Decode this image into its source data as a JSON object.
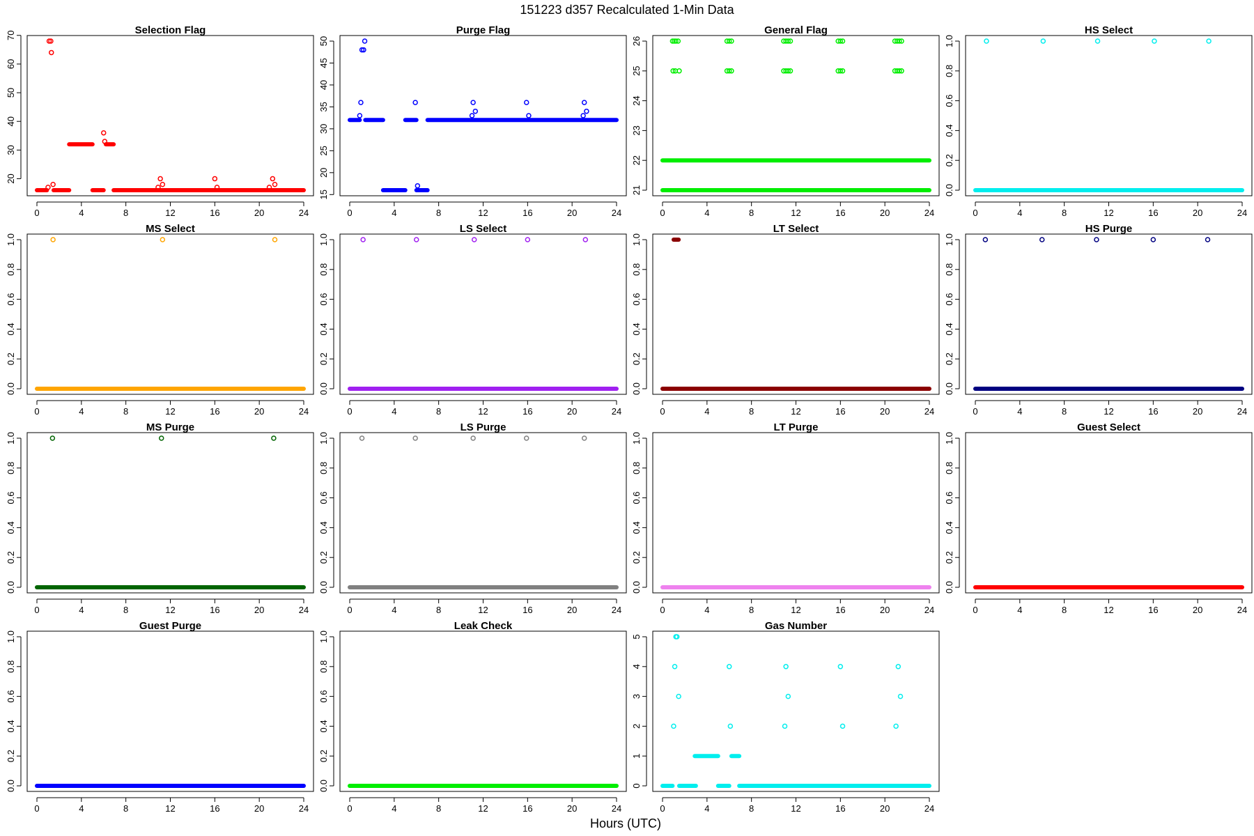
{
  "page": {
    "title": "151223   d357   Recalculated 1-Min Data",
    "x_axis_label": "Hours (UTC)"
  },
  "chart_data": [
    {
      "type": "scatter",
      "title": "Selection Flag",
      "color": "#ff0000",
      "xlim": [
        0,
        24
      ],
      "ylim": [
        16,
        68
      ],
      "xticks": [
        0,
        4,
        8,
        12,
        16,
        20,
        24
      ],
      "yticks": [
        20,
        30,
        40,
        50,
        60,
        70
      ],
      "segments": [
        {
          "x0": 0,
          "x1": 0.9,
          "y": 16
        },
        {
          "x0": 1.5,
          "x1": 2.9,
          "y": 16
        },
        {
          "x0": 2.9,
          "x1": 5.0,
          "y": 32
        },
        {
          "x0": 5.0,
          "x1": 6.0,
          "y": 16
        },
        {
          "x0": 6.2,
          "x1": 6.9,
          "y": 32
        },
        {
          "x0": 6.9,
          "x1": 24,
          "y": 16
        }
      ],
      "points": [
        {
          "x": 1.0,
          "y": 17
        },
        {
          "x": 1.1,
          "y": 68
        },
        {
          "x": 1.25,
          "y": 68
        },
        {
          "x": 1.3,
          "y": 64
        },
        {
          "x": 1.45,
          "y": 18
        },
        {
          "x": 6.0,
          "y": 36
        },
        {
          "x": 6.1,
          "y": 33
        },
        {
          "x": 10.9,
          "y": 17
        },
        {
          "x": 11.1,
          "y": 20
        },
        {
          "x": 11.3,
          "y": 18
        },
        {
          "x": 16.0,
          "y": 20
        },
        {
          "x": 16.2,
          "y": 17
        },
        {
          "x": 20.9,
          "y": 17
        },
        {
          "x": 21.2,
          "y": 20
        },
        {
          "x": 21.4,
          "y": 18
        }
      ]
    },
    {
      "type": "scatter",
      "title": "Purge Flag",
      "color": "#0000ff",
      "xlim": [
        0,
        24
      ],
      "ylim": [
        16,
        50
      ],
      "xticks": [
        0,
        4,
        8,
        12,
        16,
        20,
        24
      ],
      "yticks": [
        15,
        20,
        25,
        30,
        35,
        40,
        45,
        50
      ],
      "segments": [
        {
          "x0": 0,
          "x1": 0.9,
          "y": 32
        },
        {
          "x0": 1.4,
          "x1": 3.0,
          "y": 32
        },
        {
          "x0": 3.0,
          "x1": 5.0,
          "y": 16
        },
        {
          "x0": 5.0,
          "x1": 6.0,
          "y": 32
        },
        {
          "x0": 6.0,
          "x1": 7.0,
          "y": 16
        },
        {
          "x0": 7.0,
          "x1": 24,
          "y": 32
        }
      ],
      "points": [
        {
          "x": 0.9,
          "y": 33
        },
        {
          "x": 1.0,
          "y": 36
        },
        {
          "x": 1.1,
          "y": 48
        },
        {
          "x": 1.25,
          "y": 48
        },
        {
          "x": 1.35,
          "y": 50
        },
        {
          "x": 5.9,
          "y": 36
        },
        {
          "x": 6.1,
          "y": 17
        },
        {
          "x": 11.0,
          "y": 33
        },
        {
          "x": 11.1,
          "y": 36
        },
        {
          "x": 11.3,
          "y": 34
        },
        {
          "x": 15.9,
          "y": 36
        },
        {
          "x": 16.1,
          "y": 33
        },
        {
          "x": 21.0,
          "y": 33
        },
        {
          "x": 21.1,
          "y": 36
        },
        {
          "x": 21.3,
          "y": 34
        }
      ]
    },
    {
      "type": "scatter",
      "title": "General Flag",
      "color": "#00ee00",
      "xlim": [
        0,
        24
      ],
      "ylim": [
        21,
        26
      ],
      "xticks": [
        0,
        4,
        8,
        12,
        16,
        20,
        24
      ],
      "yticks": [
        21,
        22,
        23,
        24,
        25,
        26
      ],
      "segments": [
        {
          "x0": 0,
          "x1": 24,
          "y": 21
        },
        {
          "x0": 0,
          "x1": 24,
          "y": 22
        }
      ],
      "points": [
        {
          "x": 0.9,
          "y": 26
        },
        {
          "x": 1.05,
          "y": 26
        },
        {
          "x": 1.2,
          "y": 26
        },
        {
          "x": 1.4,
          "y": 26
        },
        {
          "x": 0.95,
          "y": 25
        },
        {
          "x": 1.15,
          "y": 25
        },
        {
          "x": 1.5,
          "y": 25
        },
        {
          "x": 5.8,
          "y": 26
        },
        {
          "x": 6.0,
          "y": 26
        },
        {
          "x": 6.2,
          "y": 26
        },
        {
          "x": 5.8,
          "y": 25
        },
        {
          "x": 6.0,
          "y": 25
        },
        {
          "x": 6.2,
          "y": 25
        },
        {
          "x": 10.9,
          "y": 26
        },
        {
          "x": 11.1,
          "y": 26
        },
        {
          "x": 11.3,
          "y": 26
        },
        {
          "x": 11.5,
          "y": 26
        },
        {
          "x": 10.9,
          "y": 25
        },
        {
          "x": 11.1,
          "y": 25
        },
        {
          "x": 11.3,
          "y": 25
        },
        {
          "x": 11.5,
          "y": 25
        },
        {
          "x": 15.8,
          "y": 26
        },
        {
          "x": 16.0,
          "y": 26
        },
        {
          "x": 16.2,
          "y": 26
        },
        {
          "x": 15.8,
          "y": 25
        },
        {
          "x": 16.0,
          "y": 25
        },
        {
          "x": 16.2,
          "y": 25
        },
        {
          "x": 20.9,
          "y": 26
        },
        {
          "x": 21.1,
          "y": 26
        },
        {
          "x": 21.3,
          "y": 26
        },
        {
          "x": 21.5,
          "y": 26
        },
        {
          "x": 20.9,
          "y": 25
        },
        {
          "x": 21.1,
          "y": 25
        },
        {
          "x": 21.3,
          "y": 25
        },
        {
          "x": 21.5,
          "y": 25
        }
      ]
    },
    {
      "type": "scatter",
      "title": "HS Select",
      "color": "#00eeee",
      "xlim": [
        0,
        24
      ],
      "ylim": [
        0,
        1
      ],
      "xticks": [
        0,
        4,
        8,
        12,
        16,
        20,
        24
      ],
      "yticks": [
        0.0,
        0.2,
        0.4,
        0.6,
        0.8,
        1.0
      ],
      "segments": [
        {
          "x0": 0,
          "x1": 24,
          "y": 0
        }
      ],
      "points": [
        {
          "x": 1.0,
          "y": 1
        },
        {
          "x": 6.1,
          "y": 1
        },
        {
          "x": 11.0,
          "y": 1
        },
        {
          "x": 16.1,
          "y": 1
        },
        {
          "x": 21.0,
          "y": 1
        }
      ]
    },
    {
      "type": "scatter",
      "title": "MS Select",
      "color": "#ffa500",
      "xlim": [
        0,
        24
      ],
      "ylim": [
        0,
        1
      ],
      "xticks": [
        0,
        4,
        8,
        12,
        16,
        20,
        24
      ],
      "yticks": [
        0.0,
        0.2,
        0.4,
        0.6,
        0.8,
        1.0
      ],
      "segments": [
        {
          "x0": 0,
          "x1": 24,
          "y": 0
        }
      ],
      "points": [
        {
          "x": 1.45,
          "y": 1
        },
        {
          "x": 11.3,
          "y": 1
        },
        {
          "x": 21.4,
          "y": 1
        }
      ]
    },
    {
      "type": "scatter",
      "title": "LS Select",
      "color": "#a020f0",
      "xlim": [
        0,
        24
      ],
      "ylim": [
        0,
        1
      ],
      "xticks": [
        0,
        4,
        8,
        12,
        16,
        20,
        24
      ],
      "yticks": [
        0.0,
        0.2,
        0.4,
        0.6,
        0.8,
        1.0
      ],
      "segments": [
        {
          "x0": 0,
          "x1": 24,
          "y": 0
        }
      ],
      "points": [
        {
          "x": 1.2,
          "y": 1
        },
        {
          "x": 6.0,
          "y": 1
        },
        {
          "x": 11.2,
          "y": 1
        },
        {
          "x": 16.0,
          "y": 1
        },
        {
          "x": 21.2,
          "y": 1
        }
      ]
    },
    {
      "type": "scatter",
      "title": "LT Select",
      "color": "#8b0000",
      "xlim": [
        0,
        24
      ],
      "ylim": [
        0,
        1
      ],
      "xticks": [
        0,
        4,
        8,
        12,
        16,
        20,
        24
      ],
      "yticks": [
        0.0,
        0.2,
        0.4,
        0.6,
        0.8,
        1.0
      ],
      "segments": [
        {
          "x0": 0,
          "x1": 24,
          "y": 0
        },
        {
          "x0": 1.0,
          "x1": 1.45,
          "y": 1
        }
      ],
      "points": []
    },
    {
      "type": "scatter",
      "title": "HS Purge",
      "color": "#000080",
      "xlim": [
        0,
        24
      ],
      "ylim": [
        0,
        1
      ],
      "xticks": [
        0,
        4,
        8,
        12,
        16,
        20,
        24
      ],
      "yticks": [
        0.0,
        0.2,
        0.4,
        0.6,
        0.8,
        1.0
      ],
      "segments": [
        {
          "x0": 0,
          "x1": 24,
          "y": 0
        }
      ],
      "points": [
        {
          "x": 0.9,
          "y": 1
        },
        {
          "x": 6.0,
          "y": 1
        },
        {
          "x": 10.9,
          "y": 1
        },
        {
          "x": 16.0,
          "y": 1
        },
        {
          "x": 20.9,
          "y": 1
        }
      ]
    },
    {
      "type": "scatter",
      "title": "MS Purge",
      "color": "#006400",
      "xlim": [
        0,
        24
      ],
      "ylim": [
        0,
        1
      ],
      "xticks": [
        0,
        4,
        8,
        12,
        16,
        20,
        24
      ],
      "yticks": [
        0.0,
        0.2,
        0.4,
        0.6,
        0.8,
        1.0
      ],
      "segments": [
        {
          "x0": 0,
          "x1": 24,
          "y": 0
        }
      ],
      "points": [
        {
          "x": 1.4,
          "y": 1
        },
        {
          "x": 11.2,
          "y": 1
        },
        {
          "x": 21.3,
          "y": 1
        }
      ]
    },
    {
      "type": "scatter",
      "title": "LS Purge",
      "color": "#808080",
      "xlim": [
        0,
        24
      ],
      "ylim": [
        0,
        1
      ],
      "xticks": [
        0,
        4,
        8,
        12,
        16,
        20,
        24
      ],
      "yticks": [
        0.0,
        0.2,
        0.4,
        0.6,
        0.8,
        1.0
      ],
      "segments": [
        {
          "x0": 0,
          "x1": 24,
          "y": 0
        }
      ],
      "points": [
        {
          "x": 1.1,
          "y": 1
        },
        {
          "x": 5.9,
          "y": 1
        },
        {
          "x": 11.1,
          "y": 1
        },
        {
          "x": 15.9,
          "y": 1
        },
        {
          "x": 21.1,
          "y": 1
        }
      ]
    },
    {
      "type": "scatter",
      "title": "LT Purge",
      "color": "#ee82ee",
      "xlim": [
        0,
        24
      ],
      "ylim": [
        0,
        1
      ],
      "xticks": [
        0,
        4,
        8,
        12,
        16,
        20,
        24
      ],
      "yticks": [
        0.0,
        0.2,
        0.4,
        0.6,
        0.8,
        1.0
      ],
      "segments": [
        {
          "x0": 0,
          "x1": 24,
          "y": 0
        }
      ],
      "points": []
    },
    {
      "type": "scatter",
      "title": "Guest Select",
      "color": "#ff0000",
      "xlim": [
        0,
        24
      ],
      "ylim": [
        0,
        1
      ],
      "xticks": [
        0,
        4,
        8,
        12,
        16,
        20,
        24
      ],
      "yticks": [
        0.0,
        0.2,
        0.4,
        0.6,
        0.8,
        1.0
      ],
      "segments": [
        {
          "x0": 0,
          "x1": 24,
          "y": 0
        }
      ],
      "points": []
    },
    {
      "type": "scatter",
      "title": "Guest Purge",
      "color": "#0000ff",
      "xlim": [
        0,
        24
      ],
      "ylim": [
        0,
        1
      ],
      "xticks": [
        0,
        4,
        8,
        12,
        16,
        20,
        24
      ],
      "yticks": [
        0.0,
        0.2,
        0.4,
        0.6,
        0.8,
        1.0
      ],
      "segments": [
        {
          "x0": 0,
          "x1": 24,
          "y": 0
        }
      ],
      "points": []
    },
    {
      "type": "scatter",
      "title": "Leak Check",
      "color": "#00ee00",
      "xlim": [
        0,
        24
      ],
      "ylim": [
        0,
        1
      ],
      "xticks": [
        0,
        4,
        8,
        12,
        16,
        20,
        24
      ],
      "yticks": [
        0.0,
        0.2,
        0.4,
        0.6,
        0.8,
        1.0
      ],
      "segments": [
        {
          "x0": 0,
          "x1": 24,
          "y": 0
        }
      ],
      "points": []
    },
    {
      "type": "scatter",
      "title": "Gas Number",
      "color": "#00eeee",
      "xlim": [
        0,
        24
      ],
      "ylim": [
        0,
        5
      ],
      "xticks": [
        0,
        4,
        8,
        12,
        16,
        20,
        24
      ],
      "yticks": [
        0,
        1,
        2,
        3,
        4,
        5
      ],
      "segments": [
        {
          "x0": 0,
          "x1": 0.9,
          "y": 0
        },
        {
          "x0": 1.5,
          "x1": 3.0,
          "y": 0
        },
        {
          "x0": 2.9,
          "x1": 5.0,
          "y": 1
        },
        {
          "x0": 5.0,
          "x1": 6.0,
          "y": 0
        },
        {
          "x0": 6.2,
          "x1": 6.9,
          "y": 1
        },
        {
          "x0": 6.9,
          "x1": 24,
          "y": 0
        }
      ],
      "points": [
        {
          "x": 1.0,
          "y": 2
        },
        {
          "x": 1.1,
          "y": 4
        },
        {
          "x": 1.2,
          "y": 5
        },
        {
          "x": 1.3,
          "y": 5
        },
        {
          "x": 1.45,
          "y": 3
        },
        {
          "x": 6.0,
          "y": 4
        },
        {
          "x": 6.1,
          "y": 2
        },
        {
          "x": 11.0,
          "y": 2
        },
        {
          "x": 11.1,
          "y": 4
        },
        {
          "x": 11.3,
          "y": 3
        },
        {
          "x": 16.0,
          "y": 4
        },
        {
          "x": 16.2,
          "y": 2
        },
        {
          "x": 21.0,
          "y": 2
        },
        {
          "x": 21.2,
          "y": 4
        },
        {
          "x": 21.4,
          "y": 3
        }
      ]
    }
  ]
}
